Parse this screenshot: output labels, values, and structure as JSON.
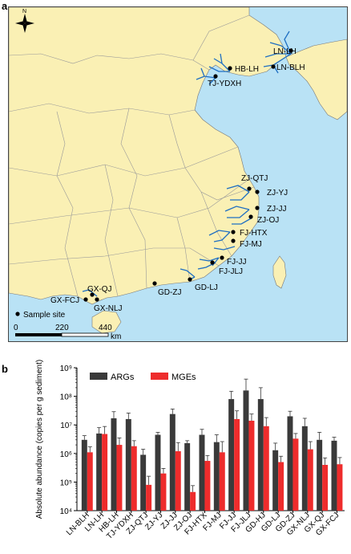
{
  "panels": {
    "a": "a",
    "b": "b"
  },
  "map": {
    "north": "N",
    "legend_label": "Sample site",
    "scale_labels": [
      "0",
      "220",
      "440"
    ],
    "scale_unit": "km",
    "colors": {
      "land": "#faf0b4",
      "sea": "#b9e2f5",
      "river": "#1f6fc2",
      "border": "#999999"
    },
    "sites": [
      {
        "id": "LN-LH",
        "label": "LN-LH"
      },
      {
        "id": "LN-BLH",
        "label": "LN-BLH"
      },
      {
        "id": "HB-LH",
        "label": "HB-LH"
      },
      {
        "id": "TJ-YDXH",
        "label": "TJ-YDXH"
      },
      {
        "id": "ZJ-QTJ",
        "label": "ZJ-QTJ"
      },
      {
        "id": "ZJ-YJ",
        "label": "ZJ-YJ"
      },
      {
        "id": "ZJ-JJ",
        "label": "ZJ-JJ"
      },
      {
        "id": "ZJ-OJ",
        "label": "ZJ-OJ"
      },
      {
        "id": "FJ-HTX",
        "label": "FJ-HTX"
      },
      {
        "id": "FJ-MJ",
        "label": "FJ-MJ"
      },
      {
        "id": "FJ-JJ",
        "label": "FJ-JJ"
      },
      {
        "id": "FJ-JLJ",
        "label": "FJ-JLJ"
      },
      {
        "id": "GD-LJ",
        "label": "GD-LJ"
      },
      {
        "id": "GD-ZJ",
        "label": "GD-ZJ"
      },
      {
        "id": "GX-QJ",
        "label": "GX-QJ"
      },
      {
        "id": "GX-FCJ",
        "label": "GX-FCJ"
      },
      {
        "id": "GX-NLJ",
        "label": "GX-NLJ"
      }
    ]
  },
  "chart_data": {
    "type": "bar",
    "ylabel": "Absolute abundance (copies per g sediment)",
    "yscale": "log",
    "ylim": [
      10000,
      1000000000
    ],
    "ytick_labels": [
      "10⁴",
      "10⁵",
      "10⁶",
      "10⁷",
      "10⁸",
      "10⁹"
    ],
    "legend_position": "top-left",
    "categories": [
      "LN-BLH",
      "LN-LH",
      "HB-LH",
      "TJ-YDXH",
      "ZJ-QTJ",
      "ZJ-YJ",
      "ZJ-JJ",
      "ZJ-OJ",
      "FJ-HTX",
      "FJ-MJ",
      "FJ-JJ",
      "FJ-JLJ",
      "GD-HJ",
      "GD-LJ",
      "GD-ZJ",
      "GX-NLJ",
      "GX-QJ",
      "GX-FCJ"
    ],
    "series": [
      {
        "name": "ARGs",
        "color": "#3a3a3a",
        "values": [
          3000000,
          5000000,
          17000000,
          16000000,
          900000,
          4500000,
          24000000,
          2300000,
          4500000,
          2500000,
          80000000,
          160000000,
          80000000,
          1300000,
          20000000,
          9000000,
          3000000,
          2800000
        ],
        "errors": [
          1200000,
          3000000,
          12000000,
          10000000,
          500000,
          1000000,
          12000000,
          500000,
          2500000,
          2000000,
          70000000,
          240000000,
          120000000,
          1000000,
          10000000,
          8000000,
          2500000,
          900000
        ]
      },
      {
        "name": "MGEs",
        "color": "#ee2c2c",
        "values": [
          1100000,
          4800000,
          2000000,
          1800000,
          80000,
          200000,
          1200000,
          45000,
          550000,
          1100000,
          16000000,
          14000000,
          9000000,
          500000,
          3300000,
          1400000,
          400000,
          420000
        ],
        "errors": [
          600000,
          4000000,
          1500000,
          1000000,
          80000,
          100000,
          1200000,
          30000,
          300000,
          1500000,
          15000000,
          10000000,
          9000000,
          300000,
          1700000,
          1200000,
          300000,
          300000
        ]
      }
    ]
  }
}
